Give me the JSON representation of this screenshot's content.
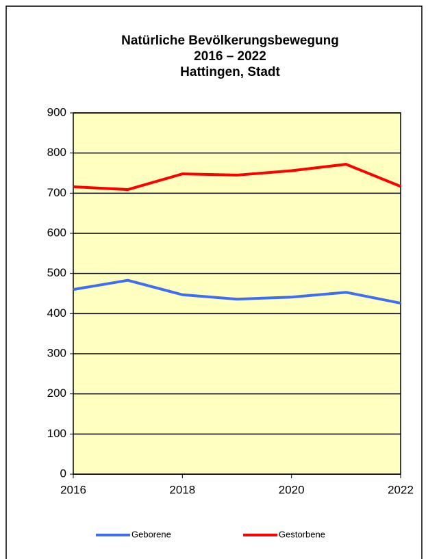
{
  "chart_data": {
    "type": "line",
    "title": [
      "Natürliche Bevölkerungsbewegung",
      "2016 – 2022",
      "Hattingen, Stadt"
    ],
    "x": [
      2016,
      2017,
      2018,
      2019,
      2020,
      2021,
      2022
    ],
    "series": [
      {
        "name": "Geborene",
        "color": "#3f6ff0",
        "values": [
          460,
          483,
          447,
          436,
          441,
          453,
          426
        ]
      },
      {
        "name": "Gestorbene",
        "color": "#ff0000",
        "values": [
          716,
          709,
          748,
          745,
          756,
          772,
          717
        ]
      }
    ],
    "xlim": [
      2016,
      2022
    ],
    "xticks": [
      2016,
      2018,
      2020,
      2022
    ],
    "ylim": [
      0,
      900
    ],
    "yticks": [
      0,
      100,
      200,
      300,
      400,
      500,
      600,
      700,
      800,
      900
    ],
    "grid": true,
    "legend": "bottom",
    "plot_background": "#ffffc0"
  }
}
